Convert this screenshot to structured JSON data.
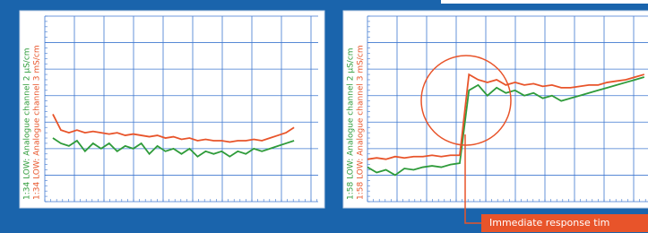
{
  "chart_data": [
    {
      "type": "line",
      "series": [
        {
          "name": "1:34 LOW: Analogue channel 2 μS/cm",
          "color": "#2e9b3a",
          "values": [
            2.4,
            2.2,
            2.1,
            2.3,
            1.9,
            2.2,
            2.0,
            2.2,
            1.9,
            2.1,
            2.0,
            2.2,
            1.8,
            2.1,
            1.9,
            2.0,
            1.8,
            2.0,
            1.7,
            1.9,
            1.8,
            1.9,
            1.7,
            1.9,
            1.8,
            2.0,
            1.9,
            2.0,
            2.1,
            2.2,
            2.3
          ]
        },
        {
          "name": "1:34 LOW: Analogue channel 3 mS/cm",
          "color": "#e8542a",
          "values": [
            3.3,
            2.7,
            2.6,
            2.7,
            2.6,
            2.65,
            2.6,
            2.55,
            2.6,
            2.5,
            2.55,
            2.5,
            2.45,
            2.5,
            2.4,
            2.45,
            2.35,
            2.4,
            2.3,
            2.35,
            2.3,
            2.3,
            2.25,
            2.3,
            2.3,
            2.35,
            2.3,
            2.4,
            2.5,
            2.6,
            2.8
          ]
        }
      ],
      "x": [
        1,
        2,
        3,
        4,
        5,
        6,
        7,
        8,
        9,
        10,
        11,
        12,
        13,
        14,
        15,
        16,
        17,
        18,
        19,
        20,
        21,
        22,
        23,
        24,
        25,
        26,
        27,
        28,
        29,
        30,
        31
      ],
      "xlim": [
        0,
        34
      ],
      "ylim": [
        0,
        7
      ],
      "grid": true
    },
    {
      "type": "line",
      "series": [
        {
          "name": "1:58 LOW: Analogue channel 2 μS/cm",
          "color": "#2e9b3a",
          "values": [
            1.3,
            1.1,
            1.2,
            1.0,
            1.25,
            1.2,
            1.3,
            1.35,
            1.3,
            1.4,
            1.45,
            4.2,
            4.4,
            4.0,
            4.3,
            4.1,
            4.2,
            4.0,
            4.1,
            3.9,
            4.0,
            3.8,
            3.9,
            4.0,
            4.1,
            4.2,
            4.3,
            4.4,
            4.5,
            4.6,
            4.7
          ]
        },
        {
          "name": "1:58 LOW: Analogue channel 3 mS/cm",
          "color": "#e8542a",
          "values": [
            1.6,
            1.65,
            1.6,
            1.7,
            1.65,
            1.7,
            1.7,
            1.75,
            1.7,
            1.75,
            1.75,
            4.8,
            4.6,
            4.5,
            4.6,
            4.4,
            4.5,
            4.4,
            4.45,
            4.35,
            4.4,
            4.3,
            4.3,
            4.35,
            4.4,
            4.4,
            4.5,
            4.55,
            4.6,
            4.7,
            4.8
          ]
        }
      ],
      "x": [
        0,
        1,
        2,
        3,
        4,
        5,
        6,
        7,
        8,
        9,
        10,
        11,
        12,
        13,
        14,
        15,
        16,
        17,
        18,
        19,
        20,
        21,
        22,
        23,
        24,
        25,
        26,
        27,
        28,
        29,
        30
      ],
      "xlim": [
        0,
        34
      ],
      "ylim": [
        0,
        7
      ],
      "grid": true,
      "annotation": "Immediate response tim"
    }
  ]
}
